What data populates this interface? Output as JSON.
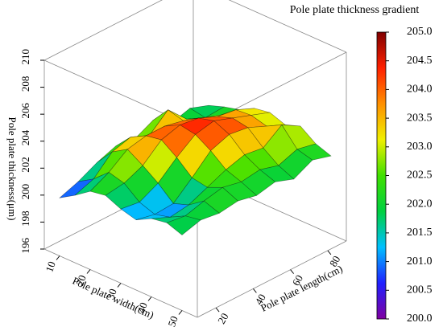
{
  "chart_data": {
    "type": "surface3d",
    "title": "Pole plate thickness gradient",
    "x_label": "Pole plate width(cm)",
    "y_label": "Pole plate length(cm)",
    "z_label": "Pole plate thickness(μm)",
    "x": [
      10,
      15,
      20,
      25,
      30,
      35,
      40,
      45,
      50
    ],
    "y": [
      10,
      20,
      30,
      40,
      50,
      60,
      70,
      80,
      90
    ],
    "z": [
      [
        200.3,
        201.0,
        201.8,
        202.0,
        201.5,
        201.2,
        201.8,
        202.0,
        201.6
      ],
      [
        200.8,
        201.5,
        202.5,
        202.2,
        201.3,
        200.9,
        201.2,
        201.8,
        202.0
      ],
      [
        201.5,
        202.8,
        203.5,
        202.8,
        202.0,
        201.0,
        201.4,
        202.2,
        201.8
      ],
      [
        202.0,
        203.2,
        203.8,
        204.0,
        203.2,
        202.2,
        202.0,
        202.5,
        202.0
      ],
      [
        201.8,
        202.6,
        203.8,
        204.4,
        204.2,
        203.5,
        202.6,
        202.2,
        201.7
      ],
      [
        202.5,
        203.8,
        203.5,
        204.2,
        204.5,
        204.0,
        203.0,
        202.4,
        202.0
      ],
      [
        201.6,
        202.4,
        203.0,
        203.6,
        204.0,
        203.8,
        202.8,
        202.0,
        201.5
      ],
      [
        202.0,
        201.8,
        202.5,
        203.4,
        203.5,
        203.2,
        203.8,
        202.5,
        202.2
      ],
      [
        201.5,
        201.9,
        202.2,
        202.8,
        203.0,
        202.6,
        203.0,
        202.2,
        201.8
      ]
    ],
    "xlim": [
      5,
      55
    ],
    "xticks": [
      10,
      20,
      30,
      40,
      50
    ],
    "ylim": [
      10,
      90
    ],
    "yticks": [
      20,
      40,
      60,
      80
    ],
    "zlim": [
      196,
      210
    ],
    "zticks": [
      196,
      198,
      200,
      202,
      204,
      206,
      208,
      210
    ],
    "clim": [
      200,
      205
    ],
    "cticks": [
      {
        "value": 200,
        "label": "200.0"
      },
      {
        "value": 200.5,
        "label": "200.5"
      },
      {
        "value": 201,
        "label": "201.0"
      },
      {
        "value": 201.5,
        "label": "201.5"
      },
      {
        "value": 202,
        "label": "202.0"
      },
      {
        "value": 202.5,
        "label": "202.5"
      },
      {
        "value": 203,
        "label": "203.0"
      },
      {
        "value": 203.5,
        "label": "203.5"
      },
      {
        "value": 204,
        "label": "204.0"
      },
      {
        "value": 204.5,
        "label": "204.5"
      },
      {
        "value": 205,
        "label": "205.0"
      }
    ],
    "colormap": [
      "#8000a0",
      "#2020ff",
      "#00c0ff",
      "#00d040",
      "#40e000",
      "#f0f000",
      "#ff9000",
      "#ff2000",
      "#800000"
    ]
  }
}
